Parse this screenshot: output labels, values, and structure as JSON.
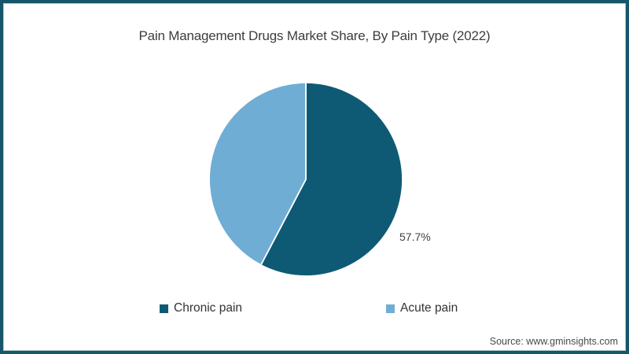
{
  "chart_data": {
    "type": "pie",
    "title": "Pain Management Drugs Market Share, By Pain Type (2022)",
    "slices": [
      {
        "label": "Chronic pain",
        "value": 57.7,
        "data_label": "57.7%",
        "color": "#0e5a74"
      },
      {
        "label": "Acute pain",
        "value": 42.3,
        "data_label": "",
        "color": "#6fadd4"
      }
    ],
    "start_angle": "12 o'clock",
    "direction": "clockwise",
    "legend_position": "bottom",
    "data_label_position": "outside-right"
  },
  "footer": {
    "source": "Source: www.gminsights.com"
  },
  "colors": {
    "frame_border": "#15566b",
    "title_text": "#3d3d3d",
    "slice_separator": "#ffffff"
  }
}
